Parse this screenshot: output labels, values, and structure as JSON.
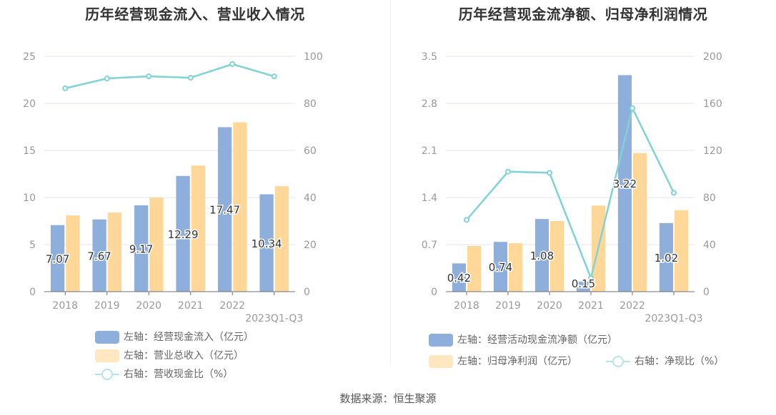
{
  "chart_data": [
    {
      "type": "bar",
      "title": "历年经营现金流入、营业收入情况",
      "categories": [
        "2018",
        "2019",
        "2020",
        "2021",
        "2022",
        "2023Q1-Q3"
      ],
      "left_axis": {
        "ylim": [
          0,
          25
        ],
        "ticks": [
          "0",
          "5",
          "10",
          "15",
          "20",
          "25"
        ]
      },
      "right_axis": {
        "ylim": [
          0,
          100
        ],
        "ticks": [
          "0",
          "20",
          "40",
          "60",
          "80",
          "100"
        ]
      },
      "series": [
        {
          "name": "左轴：经营现金流入（亿元）",
          "kind": "bar",
          "axis": "left",
          "color": "#8eaedb",
          "values": [
            7.07,
            7.67,
            9.17,
            12.29,
            17.47,
            10.34
          ],
          "labels": [
            "7.07",
            "7.67",
            "9.17",
            "12.29",
            "17.47",
            "10.34"
          ]
        },
        {
          "name": "左轴：营业总收入（亿元）",
          "kind": "bar",
          "axis": "left",
          "color": "#ffd899",
          "values": [
            8.1,
            8.4,
            10.0,
            13.4,
            18.0,
            11.2
          ]
        },
        {
          "name": "右轴：营收现金比（%）",
          "kind": "line",
          "axis": "right",
          "color": "#7fd3d6",
          "values": [
            86.4,
            90.6,
            91.5,
            90.9,
            96.7,
            91.5
          ]
        }
      ],
      "grid": true,
      "legend_position": "bottom"
    },
    {
      "type": "bar",
      "title": "历年经营现金流净额、归母净利润情况",
      "categories": [
        "2018",
        "2019",
        "2020",
        "2021",
        "2022",
        "2023Q1-Q3"
      ],
      "left_axis": {
        "ylim": [
          0,
          3.5
        ],
        "ticks": [
          "0",
          "0.7",
          "1.4",
          "2.1",
          "2.8",
          "3.5"
        ]
      },
      "right_axis": {
        "ylim": [
          0,
          200
        ],
        "ticks": [
          "0",
          "40",
          "80",
          "120",
          "160",
          "200"
        ]
      },
      "series": [
        {
          "name": "左轴：经营活动现金流净额（亿元）",
          "kind": "bar",
          "axis": "left",
          "color": "#8eaedb",
          "values": [
            0.42,
            0.74,
            1.08,
            0.15,
            3.22,
            1.02
          ],
          "labels": [
            "0.42",
            "0.74",
            "1.08",
            "0.15",
            "3.22",
            "1.02"
          ]
        },
        {
          "name": "左轴：归母净利润（亿元）",
          "kind": "bar",
          "axis": "left",
          "color": "#ffd899",
          "values": [
            0.68,
            0.72,
            1.05,
            1.28,
            2.06,
            1.21
          ]
        },
        {
          "name": "右轴：净现比（%）",
          "kind": "line",
          "axis": "right",
          "color": "#7fd3d6",
          "values": [
            61,
            102,
            101,
            11.5,
            156,
            84
          ]
        }
      ],
      "grid": true,
      "legend_position": "bottom"
    }
  ],
  "source": "数据来源：恒生聚源"
}
